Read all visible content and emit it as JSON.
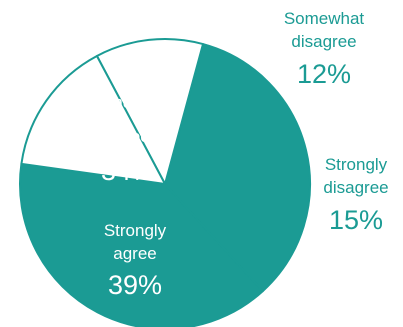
{
  "chart_data": {
    "type": "pie",
    "slices": [
      {
        "name": "Strongly agree",
        "label_lines": [
          "Strongly",
          "agree"
        ],
        "value": 39,
        "value_label": "39%",
        "fill": "#1b9b94",
        "label_color": "#ffffff"
      },
      {
        "name": "Somewhat agree",
        "label_lines": [
          "Somewhat",
          "agree"
        ],
        "value": 34,
        "value_label": "34%",
        "fill": "#1b9b94",
        "label_color": "#ffffff"
      },
      {
        "name": "Somewhat disagree",
        "label_lines": [
          "Somewhat",
          "disagree"
        ],
        "value": 12,
        "value_label": "12%",
        "fill": "#ffffff",
        "label_color": "#1b9b94"
      },
      {
        "name": "Strongly disagree",
        "label_lines": [
          "Strongly",
          "disagree"
        ],
        "value": 15,
        "value_label": "15%",
        "fill": "#ffffff",
        "label_color": "#1b9b94"
      }
    ],
    "colors": {
      "accent": "#1b9b94",
      "background": "#ffffff"
    }
  }
}
